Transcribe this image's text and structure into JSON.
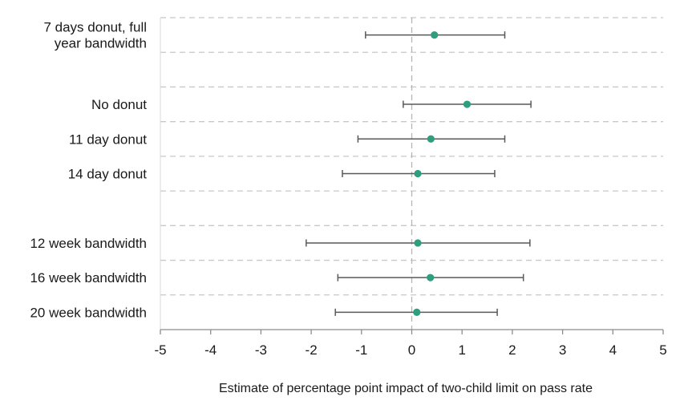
{
  "chart_data": {
    "type": "scatter",
    "subtype": "forest-plot-with-error-bars",
    "xlabel": "Estimate of percentage point impact of two-child limit on pass rate",
    "xlim": [
      -5,
      5
    ],
    "xticks": [
      -5,
      -4,
      -3,
      -2,
      -1,
      0,
      1,
      2,
      3,
      4,
      5
    ],
    "grid": "horizontal dashed",
    "reference_line": 0,
    "marker_color": "#2e9e7e",
    "errorbar_color": "#595959",
    "rows": [
      {
        "label_lines": [
          "7 days donut, full",
          "year bandwidth"
        ],
        "estimate": 0.45,
        "lower": -0.92,
        "upper": 1.85
      },
      {
        "label_lines": [],
        "estimate": null,
        "lower": null,
        "upper": null
      },
      {
        "label_lines": [
          "No donut"
        ],
        "estimate": 1.1,
        "lower": -0.17,
        "upper": 2.37
      },
      {
        "label_lines": [
          "11 day donut"
        ],
        "estimate": 0.38,
        "lower": -1.07,
        "upper": 1.85
      },
      {
        "label_lines": [
          "14 day donut"
        ],
        "estimate": 0.12,
        "lower": -1.38,
        "upper": 1.65
      },
      {
        "label_lines": [],
        "estimate": null,
        "lower": null,
        "upper": null
      },
      {
        "label_lines": [
          "12 week bandwidth"
        ],
        "estimate": 0.12,
        "lower": -2.1,
        "upper": 2.35
      },
      {
        "label_lines": [
          "16 week bandwidth"
        ],
        "estimate": 0.37,
        "lower": -1.47,
        "upper": 2.22
      },
      {
        "label_lines": [
          "20 week bandwidth"
        ],
        "estimate": 0.1,
        "lower": -1.52,
        "upper": 1.7
      }
    ]
  }
}
